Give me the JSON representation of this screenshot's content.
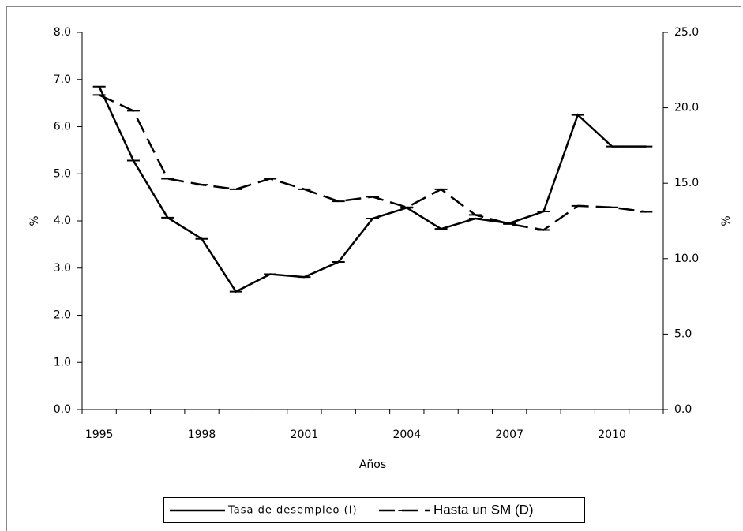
{
  "chart_data": {
    "type": "line",
    "x_label": "Años",
    "y_label": "%",
    "y2_label": "%",
    "categories": [
      "1995",
      null,
      null,
      "1998",
      null,
      null,
      "2001",
      null,
      null,
      "2004",
      null,
      null,
      "2007",
      null,
      null,
      "2010",
      null
    ],
    "series": [
      {
        "name": "Tasa de desempleo (I)",
        "color": "#000000",
        "dash": "solid",
        "axis": "y",
        "values": [
          6.85,
          5.28,
          4.07,
          3.62,
          2.5,
          2.87,
          2.81,
          3.13,
          4.05,
          4.28,
          3.83,
          4.05,
          3.95,
          4.2,
          6.25,
          5.58,
          5.58
        ]
      },
      {
        "name": "Hasta un SM (D)",
        "color": "#000000",
        "dash": "dashed",
        "axis": "y2",
        "values": [
          20.85,
          19.8,
          15.3,
          14.9,
          14.6,
          15.3,
          14.6,
          13.8,
          14.1,
          13.4,
          14.6,
          12.9,
          12.3,
          11.9,
          13.5,
          13.4,
          13.1
        ]
      }
    ],
    "ylim": [
      0,
      8
    ],
    "yticks": [
      {
        "value": 0,
        "label": "0.0"
      },
      {
        "value": 1,
        "label": "1.0"
      },
      {
        "value": 2,
        "label": "2.0"
      },
      {
        "value": 3,
        "label": "3.0"
      },
      {
        "value": 4,
        "label": "4.0"
      },
      {
        "value": 5,
        "label": "5.0"
      },
      {
        "value": 6,
        "label": "6.0"
      },
      {
        "value": 7,
        "label": "7.0"
      },
      {
        "value": 8,
        "label": "8.0"
      }
    ],
    "y2lim": [
      0,
      25
    ],
    "y2ticks": [
      {
        "value": 0,
        "label": "0.0"
      },
      {
        "value": 5,
        "label": "5.0"
      },
      {
        "value": 10,
        "label": "10.0"
      },
      {
        "value": 15,
        "label": "15.0"
      },
      {
        "value": 20,
        "label": "20.0"
      },
      {
        "value": 25,
        "label": "25.0"
      }
    ],
    "legend": "bottom"
  }
}
